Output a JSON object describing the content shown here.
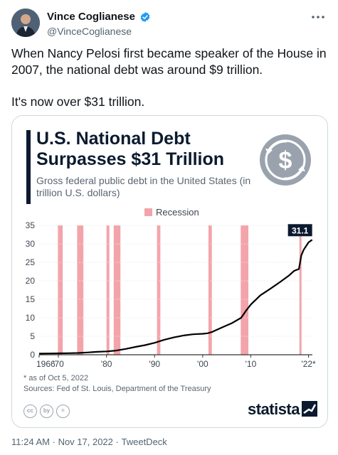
{
  "author": {
    "name": "Vince Coglianese",
    "handle": "@VinceCoglianese",
    "verified_color": "#1d9bf0"
  },
  "tweet": {
    "line1": "When Nancy Pelosi first became speaker of the House in 2007, the national debt was around $9 trillion.",
    "line2": "It's now over $31 trillion."
  },
  "card": {
    "title": "U.S. National Debt Surpasses $31 Trillion",
    "subtitle": "Gross federal public debt in the United States (in trillion U.S. dollars)",
    "legend_label": "Recession",
    "footnote": "* as of Oct 5, 2022",
    "sources": "Sources: Fed of St. Louis, Department of the Treasury",
    "brand": "statista",
    "cc_icons": [
      "cc",
      "by",
      "="
    ]
  },
  "chart_data": {
    "type": "line",
    "title": "U.S. National Debt Surpasses $31 Trillion",
    "subtitle": "Gross federal public debt in the United States (in trillion U.S. dollars)",
    "x_tick_labels": [
      "1966",
      "'70",
      "'80",
      "'90",
      "'00",
      "'10",
      "'22*"
    ],
    "x_tick_values": [
      1966,
      1970,
      1980,
      1990,
      2000,
      2010,
      2022
    ],
    "y_ticks": [
      0,
      5,
      10,
      15,
      20,
      25,
      30,
      35
    ],
    "xlim": [
      1966,
      2022.8
    ],
    "ylim": [
      0,
      35
    ],
    "series": [
      {
        "color": "#000000",
        "x": [
          1966,
          1968,
          1970,
          1972,
          1974,
          1976,
          1978,
          1980,
          1982,
          1984,
          1986,
          1988,
          1990,
          1992,
          1994,
          1996,
          1998,
          2000,
          2001,
          2002,
          2004,
          2006,
          2008,
          2009,
          2010,
          2012,
          2014,
          2016,
          2018,
          2019,
          2020,
          2020.5,
          2021,
          2022,
          2022.75
        ],
        "y": [
          0.3,
          0.35,
          0.38,
          0.43,
          0.48,
          0.62,
          0.78,
          0.9,
          1.14,
          1.57,
          2.12,
          2.6,
          3.23,
          4.06,
          4.69,
          5.22,
          5.53,
          5.67,
          5.8,
          6.2,
          7.38,
          8.5,
          10.0,
          11.9,
          13.6,
          16.1,
          17.8,
          19.6,
          21.5,
          22.7,
          23.2,
          26.9,
          28.4,
          30.4,
          31.1
        ]
      }
    ],
    "end_label": "31.1",
    "recessions": [
      [
        1969.9,
        1970.9
      ],
      [
        1973.9,
        1975.2
      ],
      [
        1980.0,
        1980.6
      ],
      [
        1981.5,
        1982.9
      ],
      [
        1990.5,
        1991.2
      ],
      [
        2001.2,
        2001.9
      ],
      [
        2007.9,
        2009.5
      ],
      [
        2020.1,
        2020.4
      ]
    ],
    "recession_color": "#f3a4aa",
    "legend": "top"
  },
  "meta": {
    "time": "11:24 AM",
    "date": "Nov 17, 2022",
    "client": "TweetDeck",
    "separator": "·"
  }
}
